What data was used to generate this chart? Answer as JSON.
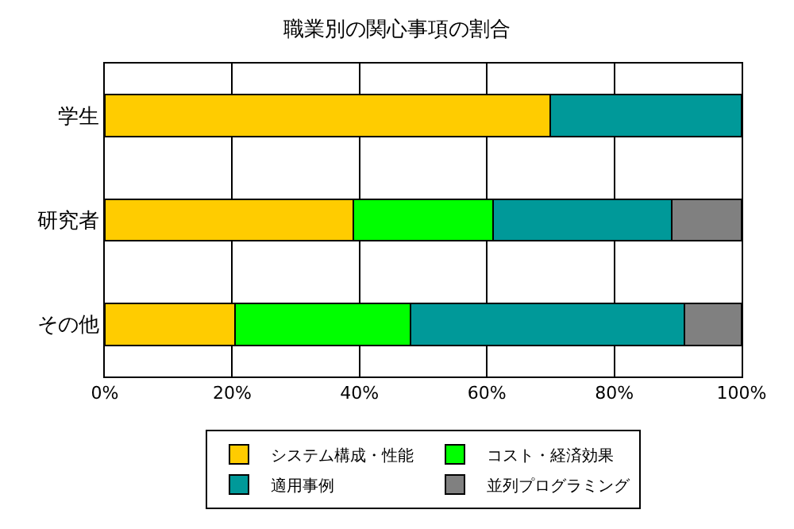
{
  "chart_data": {
    "type": "bar",
    "orientation": "horizontal",
    "stacked": true,
    "title": "職業別の関心事項の割合",
    "categories": [
      "学生",
      "研究者",
      "その他"
    ],
    "series": [
      {
        "name": "システム構成・性能",
        "color": "#ffcc00",
        "values": [
          70,
          39,
          20.5
        ]
      },
      {
        "name": "コスト・経済効果",
        "color": "#00ff00",
        "values": [
          null,
          22,
          27.5
        ]
      },
      {
        "name": "適用事例",
        "color": "#009999",
        "values": [
          30,
          28,
          43
        ]
      },
      {
        "name": "並列プログラミング",
        "color": "#808080",
        "values": [
          null,
          11,
          9
        ]
      }
    ],
    "xlim": [
      0,
      100
    ],
    "xticks": [
      {
        "value": 0,
        "label": "0%"
      },
      {
        "value": 20,
        "label": "20%"
      },
      {
        "value": 40,
        "label": "40%"
      },
      {
        "value": 60,
        "label": "60%"
      },
      {
        "value": 80,
        "label": "80%"
      },
      {
        "value": 100,
        "label": "100%"
      }
    ],
    "grid": "x",
    "legend": "bottom"
  }
}
